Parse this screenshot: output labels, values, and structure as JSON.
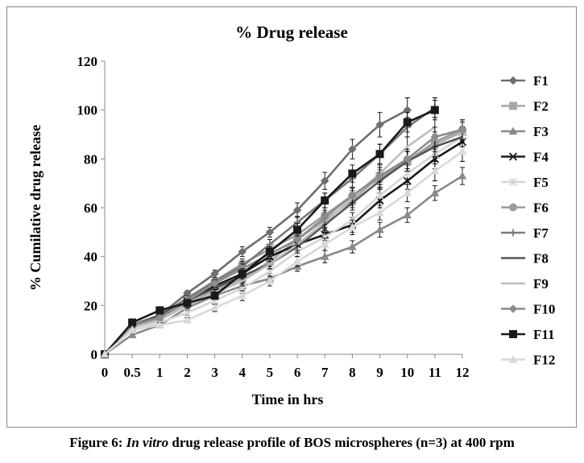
{
  "caption": {
    "prefix": "Figure 6: ",
    "italic": "In vitro",
    "suffix": " drug release profile of BOS microspheres (n=3) at 400 rpm"
  },
  "chart_data": {
    "type": "line",
    "title": "% Drug release",
    "xlabel": "Time in hrs",
    "ylabel": "% Cumilative drug release",
    "categories": [
      "0",
      "0.5",
      "1",
      "2",
      "3",
      "4",
      "5",
      "6",
      "7",
      "8",
      "9",
      "10",
      "11",
      "12"
    ],
    "ylim": [
      0,
      120
    ],
    "yticks": [
      0,
      20,
      40,
      60,
      80,
      100,
      120
    ],
    "grid": false,
    "legend_position": "right",
    "error_bars": true,
    "series": [
      {
        "name": "F1",
        "marker": "diamond",
        "color": "#6e6e6e",
        "values": [
          0,
          12,
          16,
          25,
          33,
          42,
          50,
          59,
          71,
          84,
          94,
          100,
          null,
          null
        ],
        "errors": [
          0,
          1,
          1,
          1,
          1.5,
          2,
          2,
          3,
          3.5,
          4,
          5,
          5,
          null,
          null
        ]
      },
      {
        "name": "F2",
        "marker": "square",
        "color": "#a8a8a8",
        "values": [
          0,
          11,
          15,
          21,
          26,
          31,
          38,
          47,
          55,
          63,
          73,
          79,
          86,
          91
        ],
        "errors": [
          0,
          1,
          1,
          1,
          1.5,
          2,
          2,
          2.5,
          3,
          3,
          3.5,
          4,
          4,
          4
        ]
      },
      {
        "name": "F3",
        "marker": "triangle",
        "color": "#8a8a8a",
        "values": [
          0,
          8,
          12,
          19,
          24,
          28,
          31,
          36,
          40,
          44,
          51,
          57,
          66,
          73
        ],
        "errors": [
          0,
          1,
          1,
          1,
          1.5,
          1.5,
          2,
          2,
          2.5,
          2.5,
          3,
          3,
          3,
          3.5
        ]
      },
      {
        "name": "F4",
        "marker": "x",
        "color": "#1a1a1a",
        "values": [
          0,
          12,
          15,
          22,
          28,
          33,
          40,
          45,
          49,
          53,
          63,
          71,
          80,
          87
        ],
        "errors": [
          0,
          1,
          1,
          1,
          1.5,
          2,
          2,
          2.5,
          2.5,
          3,
          3,
          3.5,
          4,
          4
        ]
      },
      {
        "name": "F5",
        "marker": "asterisk",
        "color": "#d6d6d6",
        "values": [
          0,
          10,
          13,
          17,
          22,
          27,
          34,
          42,
          48,
          55,
          65,
          74,
          82,
          89
        ],
        "errors": [
          0,
          1,
          1,
          1,
          1.5,
          2,
          2,
          2,
          2.5,
          3,
          3,
          3.5,
          4,
          4
        ]
      },
      {
        "name": "F6",
        "marker": "circle",
        "color": "#9c9c9c",
        "values": [
          0,
          11,
          15,
          22,
          30,
          37,
          43,
          49,
          57,
          65,
          72,
          79,
          87,
          92
        ],
        "errors": [
          0,
          1,
          1,
          1,
          1.5,
          2,
          2,
          2.5,
          3,
          3,
          3.5,
          4,
          4,
          4
        ]
      },
      {
        "name": "F7",
        "marker": "plus",
        "color": "#7a7a7a",
        "values": [
          0,
          11,
          16,
          23,
          30,
          36,
          45,
          54,
          63,
          72,
          82,
          93,
          101,
          null
        ],
        "errors": [
          0,
          1,
          1,
          1,
          1.5,
          2,
          2,
          2.5,
          3,
          3.5,
          4,
          4,
          4,
          null
        ]
      },
      {
        "name": "F8",
        "marker": "none",
        "color": "#555555",
        "values": [
          0,
          12,
          16,
          22,
          27,
          32,
          37,
          44,
          53,
          62,
          71,
          79,
          85,
          89
        ],
        "errors": [
          0,
          1,
          1,
          1,
          1.5,
          2,
          2,
          2.5,
          3,
          3,
          3.5,
          4,
          4,
          4
        ]
      },
      {
        "name": "F9",
        "marker": "none",
        "color": "#bdbdbd",
        "values": [
          0,
          11,
          14,
          20,
          25,
          30,
          37,
          45,
          54,
          64,
          74,
          85,
          93,
          null
        ],
        "errors": [
          0,
          1,
          1,
          1,
          1.5,
          2,
          2,
          2.5,
          3,
          3,
          3.5,
          4,
          4,
          null
        ]
      },
      {
        "name": "F10",
        "marker": "diamond",
        "color": "#8c8c8c",
        "values": [
          0,
          12,
          15,
          22,
          29,
          35,
          41,
          47,
          56,
          65,
          73,
          80,
          89,
          92
        ],
        "errors": [
          0,
          1,
          1,
          1,
          1.5,
          2,
          2,
          2.5,
          3,
          3,
          3.5,
          4,
          4,
          4
        ]
      },
      {
        "name": "F11",
        "marker": "square",
        "color": "#1a1a1a",
        "values": [
          0,
          13,
          18,
          21,
          24,
          33,
          42,
          51,
          63,
          74,
          82,
          95,
          100,
          null
        ],
        "errors": [
          0,
          1,
          1,
          1,
          1.5,
          2,
          2,
          2.5,
          3,
          3.5,
          4,
          4,
          4,
          null
        ]
      },
      {
        "name": "F12",
        "marker": "triangle",
        "color": "#d9d9d9",
        "values": [
          0,
          10,
          12,
          14,
          19,
          24,
          30,
          38,
          45,
          52,
          58,
          66,
          75,
          83
        ],
        "errors": [
          0,
          1,
          1,
          1,
          1.5,
          2,
          2,
          2,
          2.5,
          3,
          3,
          3.5,
          4,
          4
        ]
      }
    ]
  }
}
